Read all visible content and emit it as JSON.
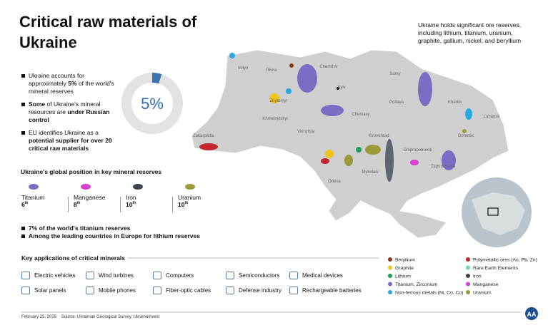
{
  "title": "Critical raw materials of Ukraine",
  "intro": "Ukraine holds significant ore reserves, including lithium, titanium, uranium, graphite, gallium, nickel, and beryllium",
  "bullets": [
    [
      {
        "text": "Ukraine accounts for approximately "
      },
      {
        "text": "5%",
        "bold": true
      },
      {
        "text": " of the world's mineral reserves"
      }
    ],
    [
      {
        "text": "Some",
        "bold": true
      },
      {
        "text": " of Ukraine's mineral resources are "
      },
      {
        "text": "under Russian control",
        "bold": true
      }
    ],
    [
      {
        "text": "EU identifies Ukraine as a "
      },
      {
        "text": "potential supplier for over 20 critical raw materials",
        "bold": true
      }
    ]
  ],
  "share": {
    "value": 5,
    "label": "5%"
  },
  "position_title": "Ukraine's global position in key mineral reserves",
  "positions": [
    {
      "mineral": "Titanium",
      "rank": "6",
      "suffix": "th"
    },
    {
      "mineral": "Manganese",
      "rank": "8",
      "suffix": "th"
    },
    {
      "mineral": "Iron",
      "rank": "10",
      "suffix": "th"
    },
    {
      "mineral": "Uranium",
      "rank": "10",
      "suffix": "th"
    }
  ],
  "facts": [
    "7% of the world's titanium reserves",
    "Among the leading countries in Europe for lithium reserves"
  ],
  "applications_title": "Key applications of critical minerals",
  "applications": [
    "Electric vehicles",
    "Wind turbines",
    "Computers",
    "Semiconductors",
    "Medical devices",
    "Solar panels",
    "Mobile phones",
    "Fiber-optic cables",
    "Defense industry",
    "Rechargeable batteries"
  ],
  "regions": [
    "Volyn",
    "Rivne",
    "Zhytomyr",
    "Kyiv",
    "Sumy",
    "Chernihiv",
    "Poltava",
    "Kharkiv",
    "Luhansk",
    "Khmelnytskyi",
    "Vinnytsia",
    "Cherkasy",
    "Kirovohrad",
    "Dnipropetrovsk",
    "Donetsk",
    "Zakarpattia",
    "Zaporizhzhia",
    "Odesa",
    "Mykolaiv"
  ],
  "legend": [
    {
      "name": "Beryllium",
      "color": "#8b3a1a"
    },
    {
      "name": "Graphite",
      "color": "#f0c419"
    },
    {
      "name": "Lithium",
      "color": "#1e9e5e"
    },
    {
      "name": "Titanium, Zirconium",
      "color": "#7b6cc4"
    },
    {
      "name": "Non-ferrous metals (Ni, Co, Cu)",
      "color": "#27a9e1"
    },
    {
      "name": "Polymetallic ores (Au, Pb, Zn)",
      "color": "#c0282d"
    },
    {
      "name": "Rare Earth Elements",
      "color": "#6fd6b0"
    },
    {
      "name": "Iron",
      "color": "#3d4450"
    },
    {
      "name": "Manganese",
      "color": "#d93fd0"
    },
    {
      "name": "Uranium",
      "color": "#9a9a3a"
    }
  ],
  "footer": {
    "date": "February 25, 2025",
    "source": "Source: Ukrainian Geological Survey, UkraineInvest"
  }
}
